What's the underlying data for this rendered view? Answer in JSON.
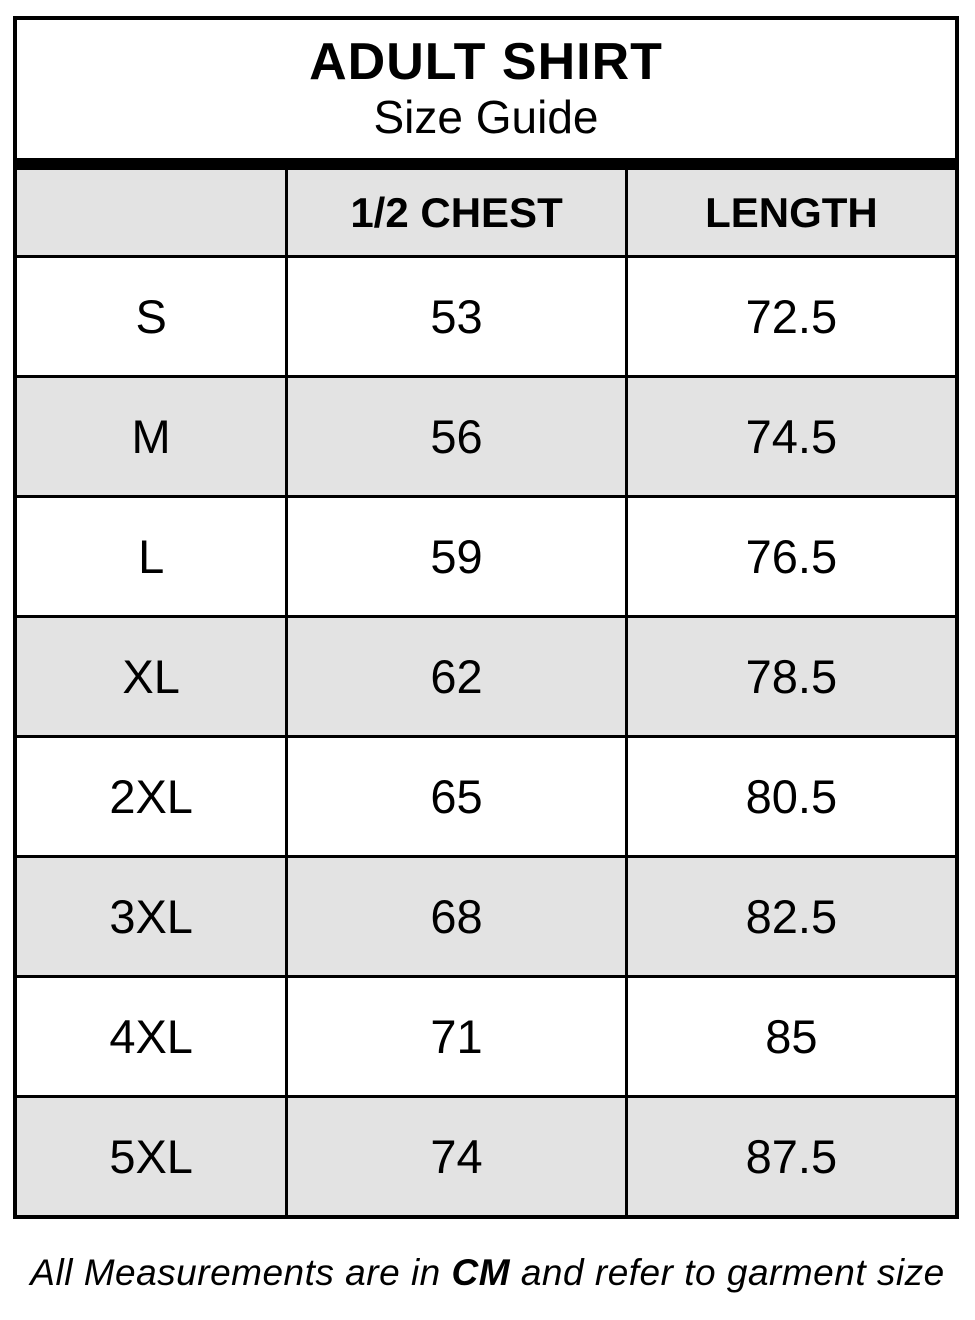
{
  "title": {
    "line1": "ADULT SHIRT",
    "line2": "Size Guide"
  },
  "table": {
    "columns": [
      "",
      "1/2 CHEST",
      "LENGTH"
    ],
    "rows": [
      {
        "size": "S",
        "half_chest": "53",
        "length": "72.5"
      },
      {
        "size": "M",
        "half_chest": "56",
        "length": "74.5"
      },
      {
        "size": "L",
        "half_chest": "59",
        "length": "76.5"
      },
      {
        "size": "XL",
        "half_chest": "62",
        "length": "78.5"
      },
      {
        "size": "2XL",
        "half_chest": "65",
        "length": "80.5"
      },
      {
        "size": "3XL",
        "half_chest": "68",
        "length": "82.5"
      },
      {
        "size": "4XL",
        "half_chest": "71",
        "length": "85"
      },
      {
        "size": "5XL",
        "half_chest": "74",
        "length": "87.5"
      }
    ]
  },
  "footnote": {
    "prefix": "All Measurements are in ",
    "unit": "CM",
    "suffix": " and refer to garment size"
  },
  "colors": {
    "border": "#000000",
    "row_shade": "#e3e3e3",
    "background": "#ffffff"
  }
}
